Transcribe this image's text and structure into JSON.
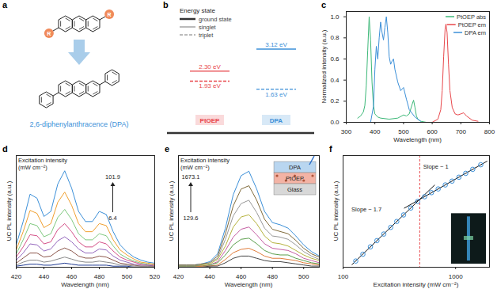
{
  "chart_data": [
    {
      "label": "a",
      "type": "diagram",
      "substituent": "R",
      "product": "2,6-diphenylanthracence (DPA)"
    },
    {
      "label": "b",
      "type": "energy_diagram",
      "legend_title": "Energy state",
      "states": [
        {
          "name": "ground state",
          "line_style": "solid"
        },
        {
          "name": "singlet",
          "line_style": "solid"
        },
        {
          "name": "triplet",
          "line_style": "dashed"
        }
      ],
      "molecules": [
        {
          "name": "PtOEP",
          "color": "#e8474b",
          "levels": [
            {
              "state": "singlet",
              "value": 2.3,
              "label": "2.30 eV"
            },
            {
              "state": "triplet",
              "value": 1.93,
              "label": "1.93 eV"
            }
          ]
        },
        {
          "name": "DPA",
          "color": "#3b8fd8",
          "levels": [
            {
              "state": "singlet",
              "value": 3.12,
              "label": "3.12 eV"
            },
            {
              "state": "triplet",
              "value": 1.63,
              "label": "1.63 eV"
            }
          ]
        }
      ]
    },
    {
      "label": "c",
      "type": "line",
      "x_label": "Wavelength (nm)",
      "y_label": "Normalized intensity (a.u.)",
      "xlim": [
        300,
        800
      ],
      "xticks": [
        300,
        400,
        500,
        600,
        700,
        800
      ],
      "ylim": [
        0,
        1.05
      ],
      "yticks": [
        {
          "value": 0,
          "label": "0.0"
        },
        {
          "value": 0.2,
          "label": "0.2"
        },
        {
          "value": 0.4,
          "label": "0.4"
        },
        {
          "value": 0.6,
          "label": "0.6"
        },
        {
          "value": 0.8,
          "label": "0.8"
        },
        {
          "value": 1,
          "label": "1.0"
        }
      ],
      "legend": "top right",
      "series": [
        {
          "name": "PtOEP abs",
          "color": "#3cb878",
          "x": [
            340,
            350,
            360,
            365,
            370,
            375,
            380,
            385,
            390,
            395,
            400,
            410,
            420,
            450,
            480,
            500,
            510,
            520,
            530,
            535,
            540,
            545,
            550,
            560,
            580
          ],
          "values": [
            0.04,
            0.06,
            0.1,
            0.16,
            0.35,
            0.68,
            1.0,
            0.78,
            0.38,
            0.16,
            0.08,
            0.05,
            0.04,
            0.03,
            0.04,
            0.07,
            0.06,
            0.08,
            0.17,
            0.21,
            0.14,
            0.06,
            0.03,
            0.01,
            0.0
          ]
        },
        {
          "name": "PtOEP em",
          "color": "#e8474b",
          "x": [
            600,
            620,
            630,
            635,
            640,
            645,
            648,
            652,
            657,
            662,
            670,
            680,
            690,
            700,
            710,
            720,
            740,
            760
          ],
          "values": [
            0,
            0.03,
            0.12,
            0.3,
            0.62,
            0.88,
            0.93,
            0.85,
            0.55,
            0.3,
            0.14,
            0.08,
            0.07,
            0.08,
            0.09,
            0.06,
            0.02,
            0.01
          ]
        },
        {
          "name": "DPA em",
          "color": "#3b8fd8",
          "x": [
            385,
            395,
            400,
            405,
            410,
            415,
            420,
            425,
            430,
            435,
            440,
            445,
            450,
            455,
            460,
            465,
            470,
            480,
            490,
            500,
            510,
            520,
            540,
            560
          ],
          "values": [
            0,
            0.15,
            0.5,
            0.72,
            0.6,
            0.8,
            0.95,
            0.85,
            0.78,
            0.9,
            1.0,
            0.85,
            0.62,
            0.55,
            0.58,
            0.6,
            0.5,
            0.38,
            0.3,
            0.33,
            0.22,
            0.12,
            0.05,
            0.01
          ]
        }
      ]
    },
    {
      "label": "d",
      "type": "line",
      "x_label": "Wavelength (nm)",
      "y_label": "UC PL intensity (a.u.)",
      "xlim": [
        420,
        520
      ],
      "xticks": [
        420,
        440,
        460,
        480,
        500,
        520
      ],
      "ylim": [
        0,
        1.1
      ],
      "tick_labels": "x",
      "annotation": {
        "title": "Excitation intensity",
        "unit": "(mW cm⁻²)",
        "high": 101.9,
        "low": 6.4
      },
      "x": [
        420,
        425,
        430,
        435,
        440,
        445,
        450,
        455,
        460,
        465,
        470,
        475,
        480,
        485,
        490,
        495,
        500,
        505,
        510,
        515,
        520
      ],
      "series": [
        {
          "color": "#3b8fd8",
          "values": [
            0.22,
            0.45,
            0.72,
            0.68,
            0.5,
            0.55,
            0.82,
            0.95,
            0.78,
            0.55,
            0.45,
            0.45,
            0.55,
            0.52,
            0.35,
            0.22,
            0.15,
            0.1,
            0.07,
            0.05,
            0.04
          ]
        },
        {
          "color": "#f0a030",
          "values": [
            0.17,
            0.35,
            0.56,
            0.53,
            0.39,
            0.43,
            0.64,
            0.74,
            0.61,
            0.43,
            0.35,
            0.35,
            0.43,
            0.41,
            0.27,
            0.17,
            0.12,
            0.08,
            0.05,
            0.04,
            0.03
          ]
        },
        {
          "color": "#7fc97f",
          "values": [
            0.13,
            0.27,
            0.43,
            0.41,
            0.3,
            0.33,
            0.49,
            0.57,
            0.47,
            0.33,
            0.27,
            0.27,
            0.33,
            0.31,
            0.21,
            0.13,
            0.09,
            0.06,
            0.04,
            0.03,
            0.02
          ]
        },
        {
          "color": "#d45087",
          "values": [
            0.1,
            0.2,
            0.32,
            0.31,
            0.23,
            0.25,
            0.37,
            0.43,
            0.35,
            0.25,
            0.2,
            0.2,
            0.25,
            0.23,
            0.16,
            0.1,
            0.07,
            0.05,
            0.03,
            0.02,
            0.02
          ]
        },
        {
          "color": "#9467bd",
          "values": [
            0.07,
            0.14,
            0.23,
            0.22,
            0.16,
            0.18,
            0.26,
            0.3,
            0.25,
            0.18,
            0.14,
            0.14,
            0.18,
            0.17,
            0.11,
            0.07,
            0.05,
            0.03,
            0.02,
            0.02,
            0.01
          ]
        },
        {
          "color": "#8c564b",
          "values": [
            0.04,
            0.09,
            0.14,
            0.14,
            0.1,
            0.11,
            0.16,
            0.19,
            0.16,
            0.11,
            0.09,
            0.09,
            0.11,
            0.1,
            0.07,
            0.04,
            0.03,
            0.02,
            0.01,
            0.01,
            0.01
          ]
        },
        {
          "color": "#888888",
          "values": [
            0.02,
            0.05,
            0.07,
            0.07,
            0.05,
            0.06,
            0.08,
            0.1,
            0.08,
            0.06,
            0.05,
            0.05,
            0.06,
            0.05,
            0.04,
            0.02,
            0.02,
            0.01,
            0.01,
            0.01,
            0.0
          ]
        },
        {
          "color": "#1f3a93",
          "values": [
            0.01,
            0.02,
            0.03,
            0.03,
            0.02,
            0.02,
            0.03,
            0.04,
            0.03,
            0.02,
            0.02,
            0.02,
            0.02,
            0.02,
            0.01,
            0.01,
            0.01,
            0.0,
            0.0,
            0.0,
            0.0
          ]
        }
      ]
    },
    {
      "label": "e",
      "type": "line",
      "x_label": "Wavelength (nm)",
      "y_label": "UC PL intensity (a.u.)",
      "xlim": [
        420,
        510
      ],
      "xticks": [
        420,
        440,
        460,
        480,
        500
      ],
      "ylim": [
        0,
        1
      ],
      "tick_labels": "x",
      "annotation": {
        "title": "Excitation intensity",
        "unit": "(mW cm⁻²)",
        "high": 1673.1,
        "low": 129.6
      },
      "inset": {
        "layers": [
          "DPA",
          "PtOEP",
          "Glass"
        ]
      },
      "x": [
        420,
        425,
        430,
        435,
        440,
        445,
        450,
        455,
        460,
        465,
        470,
        475,
        480,
        485,
        490,
        495,
        500,
        505,
        510
      ],
      "series": [
        {
          "color": "#3b8fd8",
          "values": [
            0.02,
            0.02,
            0.02,
            0.03,
            0.05,
            0.12,
            0.35,
            0.65,
            0.82,
            0.86,
            0.7,
            0.5,
            0.4,
            0.38,
            0.35,
            0.28,
            0.2,
            0.14,
            0.1
          ]
        },
        {
          "color": "#7f6a3a",
          "values": [
            0.02,
            0.02,
            0.02,
            0.03,
            0.04,
            0.1,
            0.3,
            0.55,
            0.7,
            0.73,
            0.6,
            0.43,
            0.34,
            0.32,
            0.3,
            0.24,
            0.17,
            0.12,
            0.09
          ]
        },
        {
          "color": "#999999",
          "values": [
            0.01,
            0.01,
            0.01,
            0.02,
            0.04,
            0.08,
            0.25,
            0.46,
            0.57,
            0.6,
            0.49,
            0.35,
            0.28,
            0.27,
            0.25,
            0.2,
            0.14,
            0.1,
            0.07
          ]
        },
        {
          "color": "#b5b23c",
          "values": [
            0.01,
            0.01,
            0.01,
            0.02,
            0.03,
            0.07,
            0.19,
            0.36,
            0.45,
            0.47,
            0.39,
            0.28,
            0.22,
            0.21,
            0.19,
            0.15,
            0.11,
            0.08,
            0.06
          ]
        },
        {
          "color": "#c45ca2",
          "values": [
            0.01,
            0.01,
            0.01,
            0.01,
            0.02,
            0.05,
            0.15,
            0.27,
            0.34,
            0.36,
            0.29,
            0.21,
            0.17,
            0.16,
            0.15,
            0.12,
            0.08,
            0.06,
            0.04
          ]
        },
        {
          "color": "#5a9e4b",
          "values": [
            0.01,
            0.01,
            0.01,
            0.01,
            0.02,
            0.04,
            0.11,
            0.2,
            0.25,
            0.26,
            0.21,
            0.15,
            0.12,
            0.11,
            0.11,
            0.08,
            0.06,
            0.04,
            0.03
          ]
        },
        {
          "color": "#e07b39",
          "values": [
            0.0,
            0.0,
            0.0,
            0.01,
            0.01,
            0.02,
            0.07,
            0.13,
            0.16,
            0.17,
            0.14,
            0.1,
            0.08,
            0.08,
            0.07,
            0.06,
            0.04,
            0.03,
            0.02
          ]
        },
        {
          "color": "#444444",
          "values": [
            0.0,
            0.0,
            0.0,
            0.0,
            0.01,
            0.01,
            0.04,
            0.08,
            0.1,
            0.1,
            0.08,
            0.06,
            0.05,
            0.05,
            0.04,
            0.03,
            0.02,
            0.01,
            0.01
          ]
        }
      ]
    },
    {
      "label": "f",
      "type": "scatter",
      "x_label": "Excitation intensity (mW cm⁻²)",
      "y_label": "UC PL intensity (a.u.)",
      "log": true,
      "xlim": [
        100,
        2000
      ],
      "xticks": [
        100,
        1000
      ],
      "ylim": [
        0.8,
        45
      ],
      "tick_labels": "x",
      "marker": "circle",
      "color": "#3b8fd8",
      "x": [
        129.6,
        150,
        175,
        200,
        230,
        265,
        300,
        345,
        400,
        460,
        530,
        610,
        700,
        810,
        930,
        1070,
        1230,
        1420,
        1673.1
      ],
      "values": [
        1.0,
        1.28,
        1.67,
        2.09,
        2.65,
        3.37,
        4.17,
        5.28,
        6.79,
        8.62,
        10.2,
        11.8,
        13.5,
        15.6,
        17.9,
        20.6,
        23.7,
        27.4,
        32.3
      ],
      "fits": [
        {
          "label": "Slope ~ 1.7",
          "x": [
            120,
            650
          ],
          "values": [
            0.88,
            15.5
          ]
        },
        {
          "label": "Slope ~ 1",
          "x": [
            350,
            1900
          ],
          "values": [
            6.75,
            36.7
          ]
        }
      ],
      "threshold": 480
    }
  ]
}
